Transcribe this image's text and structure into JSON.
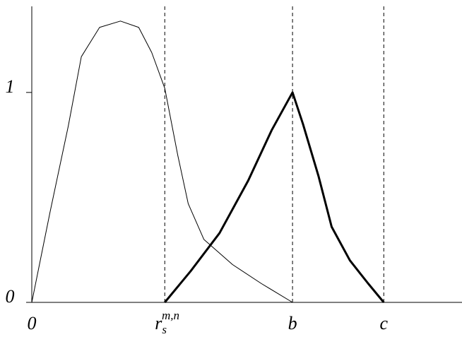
{
  "chart_data": {
    "type": "line",
    "xlim": [
      0,
      1.65
    ],
    "ylim": [
      0,
      1.41
    ],
    "xticks": [
      {
        "value": 0,
        "label": "0"
      },
      {
        "value": 0.51,
        "label": "r",
        "subscript": "s",
        "superscript": "m,n"
      },
      {
        "value": 1,
        "label": "b"
      },
      {
        "value": 1.35,
        "label": "c"
      }
    ],
    "yticks": [
      0,
      1
    ],
    "grid": "dashed",
    "series": [
      {
        "color": "#000000",
        "width": "thin",
        "x": [
          0,
          0.07,
          0.14,
          0.19,
          0.26,
          0.34,
          0.41,
          0.46,
          0.51,
          0.56,
          0.6,
          0.66,
          0.77,
          0.88,
          1
        ],
        "values": [
          0,
          0.43,
          0.84,
          1.17,
          1.31,
          1.34,
          1.31,
          1.19,
          1.02,
          0.7,
          0.47,
          0.3,
          0.18,
          0.09,
          0
        ]
      },
      {
        "color": "#000000",
        "width": "thick",
        "x": [
          0.51,
          0.61,
          0.72,
          0.83,
          0.92,
          1,
          1.04,
          1.1,
          1.15,
          1.22,
          1.29,
          1.35
        ],
        "values": [
          0,
          0.15,
          0.33,
          0.58,
          0.82,
          1,
          0.85,
          0.6,
          0.36,
          0.2,
          0.09,
          0
        ]
      }
    ]
  }
}
